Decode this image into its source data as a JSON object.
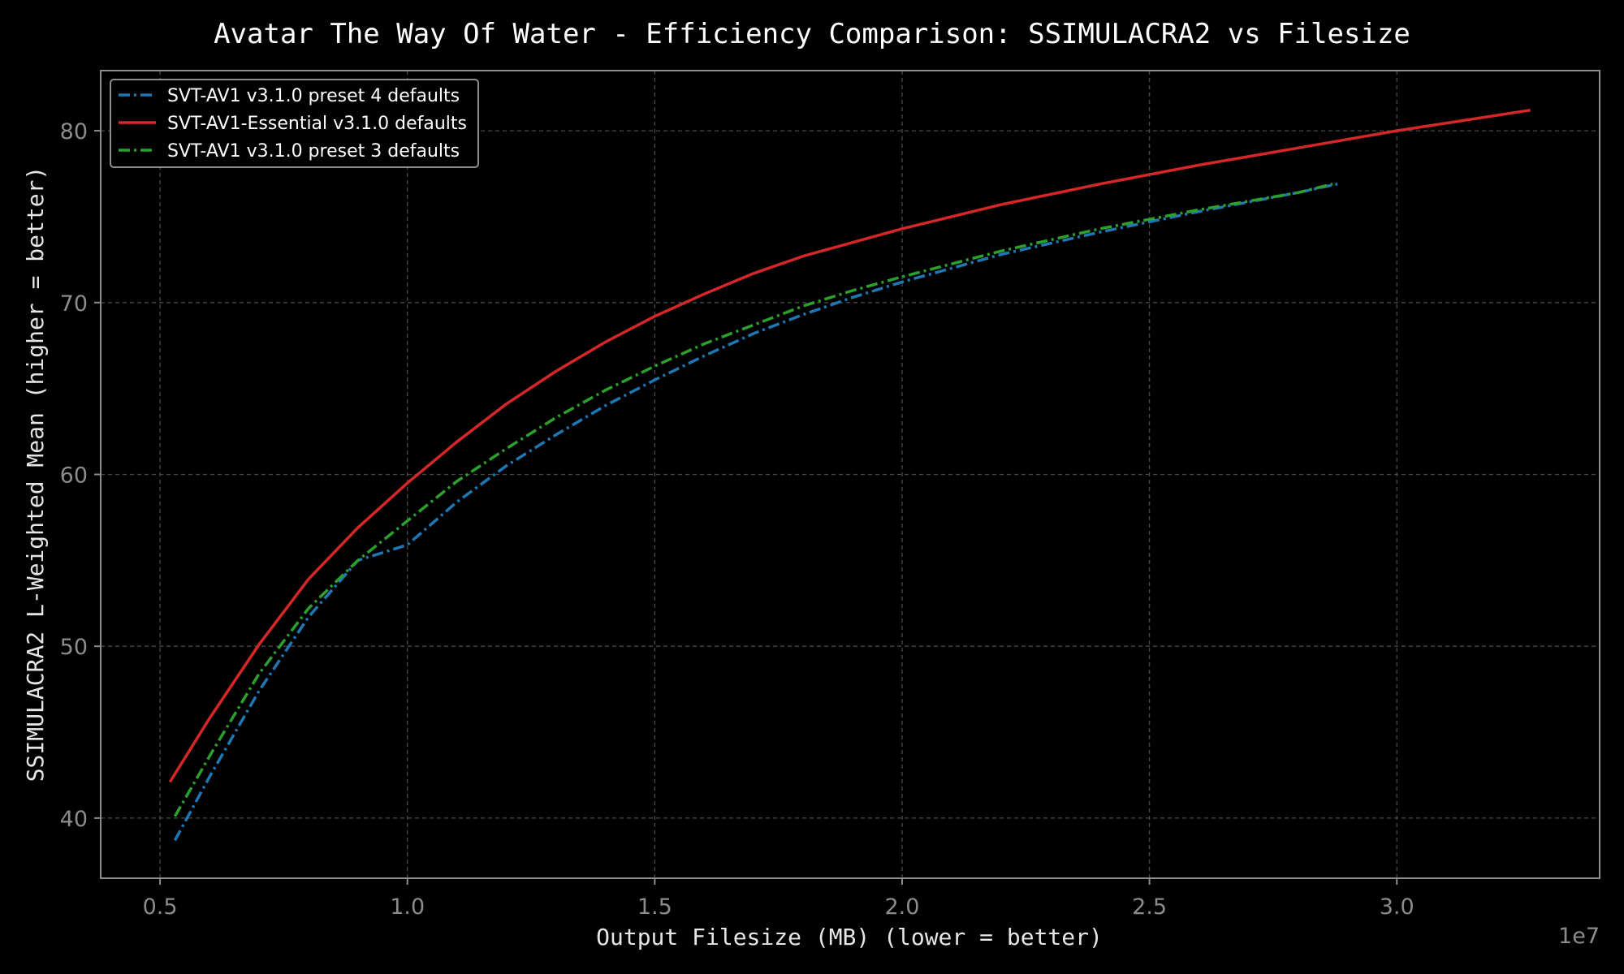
{
  "chart_data": {
    "type": "line",
    "title": "Avatar The Way Of Water - Efficiency Comparison: SSIMULACRA2 vs Filesize",
    "xlabel": "Output Filesize (MB) (lower = better)",
    "ylabel": "SSIMULACRA2 L-Weighted Mean (higher = better)",
    "x_offset_label": "1e7",
    "x_scale_factor": 10000000,
    "xlim": [
      0.38,
      3.41
    ],
    "ylim": [
      36.5,
      83.5
    ],
    "xticks": [
      0.5,
      1.0,
      1.5,
      2.0,
      2.5,
      3.0
    ],
    "xtick_labels": [
      "0.5",
      "1.0",
      "1.5",
      "2.0",
      "2.5",
      "3.0"
    ],
    "yticks": [
      40,
      50,
      60,
      70,
      80
    ],
    "ytick_labels": [
      "40",
      "50",
      "60",
      "70",
      "80"
    ],
    "grid": true,
    "legend_placement": "upper-left",
    "series": [
      {
        "name": "SVT-AV1 v3.1.0 preset 4 defaults",
        "color": "#1f77b4",
        "dash": "dashdot",
        "x": [
          0.53,
          0.6,
          0.7,
          0.8,
          0.9,
          1.0,
          1.1,
          1.2,
          1.3,
          1.4,
          1.5,
          1.6,
          1.7,
          1.8,
          1.9,
          2.0,
          2.2,
          2.4,
          2.6,
          2.8,
          2.88
        ],
        "y": [
          38.7,
          42.4,
          47.4,
          51.7,
          55.0,
          55.9,
          58.4,
          60.5,
          62.3,
          64.0,
          65.5,
          66.9,
          68.2,
          69.3,
          70.3,
          71.2,
          72.8,
          74.1,
          75.3,
          76.4,
          76.9
        ]
      },
      {
        "name": "SVT-AV1-Essential v3.1.0 defaults",
        "color": "#d62728",
        "dash": "solid",
        "x": [
          0.52,
          0.6,
          0.7,
          0.8,
          0.9,
          1.0,
          1.1,
          1.2,
          1.3,
          1.4,
          1.5,
          1.6,
          1.7,
          1.8,
          1.9,
          2.0,
          2.2,
          2.4,
          2.6,
          2.8,
          3.0,
          3.27
        ],
        "y": [
          42.1,
          45.8,
          50.1,
          53.9,
          56.9,
          59.5,
          61.9,
          64.1,
          66.0,
          67.7,
          69.2,
          70.5,
          71.7,
          72.7,
          73.5,
          74.3,
          75.7,
          76.9,
          78.0,
          79.0,
          80.0,
          81.2
        ]
      },
      {
        "name": "SVT-AV1 v3.1.0 preset 3 defaults",
        "color": "#2ca02c",
        "dash": "dashdot",
        "x": [
          0.53,
          0.6,
          0.7,
          0.8,
          0.9,
          1.0,
          1.1,
          1.2,
          1.3,
          1.4,
          1.5,
          1.6,
          1.7,
          1.8,
          1.9,
          2.0,
          2.2,
          2.4,
          2.6,
          2.8,
          2.87
        ],
        "y": [
          40.1,
          43.6,
          48.4,
          52.2,
          55.0,
          57.3,
          59.6,
          61.5,
          63.3,
          64.9,
          66.3,
          67.6,
          68.7,
          69.8,
          70.7,
          71.5,
          73.0,
          74.3,
          75.4,
          76.4,
          76.9
        ]
      }
    ]
  }
}
